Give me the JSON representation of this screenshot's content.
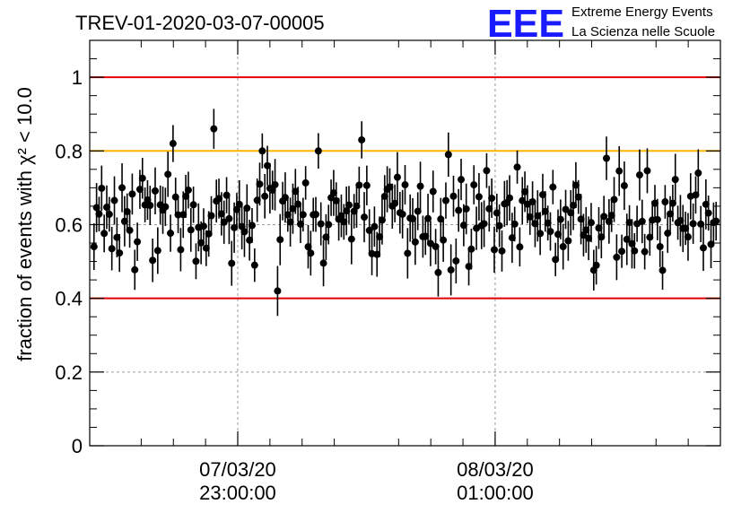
{
  "header": {
    "run_title": "TREV-01-2020-03-07-00005",
    "logo_mark": "EEE",
    "logo_line1": "Extreme Energy Events",
    "logo_line2": "La Scienza nelle Scuole"
  },
  "colors": {
    "brand": "#1a1aff",
    "upper_limit": "#e00000",
    "lower_limit": "#e00000",
    "warning": "#ffb400",
    "points": "#000000",
    "grid": "#9a9a9a"
  },
  "chart_data": {
    "type": "scatter",
    "title": "TREV-01-2020-03-07-00005",
    "ylabel": "fraction of events with χ² < 10.0",
    "xlabel": "",
    "ylim": [
      0,
      1.1
    ],
    "yticks": [
      0,
      0.2,
      0.4,
      0.6,
      0.8,
      1
    ],
    "ytick_labels": [
      "0",
      "0.2",
      "0.4",
      "0.6",
      "0.8",
      "1"
    ],
    "xlim": [
      "2020-03-07 21:51",
      "2020-03-08 02:45"
    ],
    "xticks": [
      {
        "value": "2020-03-07 23:00",
        "date_label": "07/03/20",
        "time_label": "23:00:00"
      },
      {
        "value": "2020-03-08 01:00",
        "date_label": "08/03/20",
        "time_label": "01:00:00"
      }
    ],
    "grid": true,
    "reference_lines": [
      {
        "y": 1.0,
        "color": "#e00000"
      },
      {
        "y": 0.8,
        "color": "#ffb400"
      },
      {
        "y": 0.4,
        "color": "#e00000"
      }
    ],
    "n_points": 245,
    "approx_mean": 0.62,
    "highlighted_points": [
      {
        "x": "2020-03-07 22:30",
        "y": 0.82
      },
      {
        "x": "2020-03-07 22:49",
        "y": 0.86
      },
      {
        "x": "2020-03-07 23:12",
        "y": 0.8
      },
      {
        "x": "2020-03-07 23:19",
        "y": 0.42
      },
      {
        "x": "2020-03-07 23:37",
        "y": 0.8
      },
      {
        "x": "2020-03-07 23:58",
        "y": 0.83
      },
      {
        "x": "2020-03-08 00:33",
        "y": 0.47
      },
      {
        "x": "2020-03-08 00:38",
        "y": 0.79
      },
      {
        "x": "2020-03-08 01:52",
        "y": 0.78
      },
      {
        "x": "2020-03-08 02:35",
        "y": 0.74
      }
    ]
  }
}
